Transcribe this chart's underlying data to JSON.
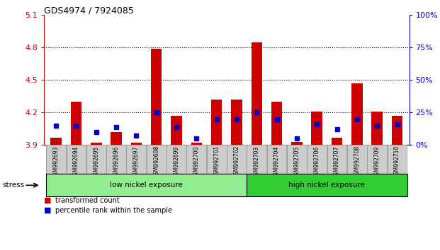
{
  "title": "GDS4974 / 7924085",
  "samples": [
    "GSM992693",
    "GSM992694",
    "GSM992695",
    "GSM992696",
    "GSM992697",
    "GSM992698",
    "GSM992699",
    "GSM992700",
    "GSM992701",
    "GSM992702",
    "GSM992703",
    "GSM992704",
    "GSM992705",
    "GSM992706",
    "GSM992707",
    "GSM992708",
    "GSM992709",
    "GSM992710"
  ],
  "red_values": [
    3.97,
    4.3,
    3.92,
    4.02,
    3.92,
    4.79,
    4.17,
    3.92,
    4.32,
    4.32,
    4.85,
    4.3,
    3.93,
    4.21,
    3.97,
    4.47,
    4.21,
    4.17
  ],
  "blue_percentile": [
    15,
    15,
    10,
    14,
    7,
    25,
    14,
    5,
    20,
    20,
    25,
    20,
    5,
    16,
    12,
    20,
    15,
    16
  ],
  "ylim_left": [
    3.9,
    5.1
  ],
  "ylim_right": [
    0,
    100
  ],
  "yticks_left": [
    3.9,
    4.2,
    4.5,
    4.8,
    5.1
  ],
  "yticks_right": [
    0,
    25,
    50,
    75,
    100
  ],
  "left_color": "#cc0000",
  "right_color": "#0000cc",
  "bar_color": "#cc0000",
  "blue_marker_color": "#0000cc",
  "background_plot": "#ffffff",
  "group1_label": "low nickel exposure",
  "group2_label": "high nickel exposure",
  "group1_color": "#90ee90",
  "group2_color": "#32cd32",
  "stress_label": "stress",
  "legend1": "transformed count",
  "legend2": "percentile rank within the sample",
  "n_group1": 10,
  "n_group2": 8,
  "dotted_lines": [
    4.2,
    4.5,
    4.8
  ],
  "tickbox_color": "#cccccc"
}
